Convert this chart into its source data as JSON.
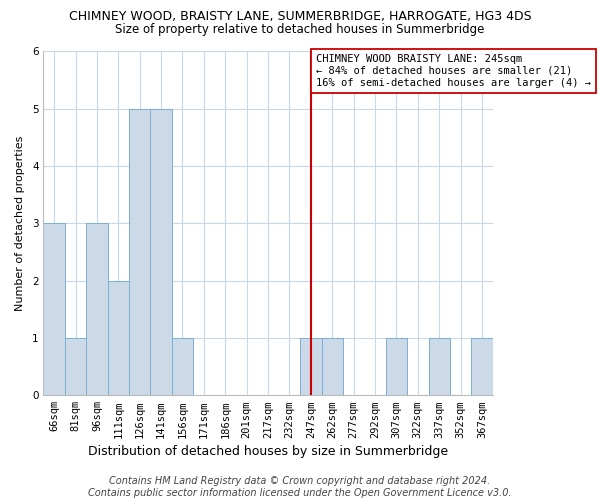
{
  "title": "CHIMNEY WOOD, BRAISTY LANE, SUMMERBRIDGE, HARROGATE, HG3 4DS",
  "subtitle": "Size of property relative to detached houses in Summerbridge",
  "xlabel": "Distribution of detached houses by size in Summerbridge",
  "ylabel": "Number of detached properties",
  "bar_labels": [
    "66sqm",
    "81sqm",
    "96sqm",
    "111sqm",
    "126sqm",
    "141sqm",
    "156sqm",
    "171sqm",
    "186sqm",
    "201sqm",
    "217sqm",
    "232sqm",
    "247sqm",
    "262sqm",
    "277sqm",
    "292sqm",
    "307sqm",
    "322sqm",
    "337sqm",
    "352sqm",
    "367sqm"
  ],
  "bar_values": [
    3,
    1,
    3,
    2,
    5,
    5,
    1,
    0,
    0,
    0,
    0,
    0,
    1,
    1,
    0,
    0,
    1,
    0,
    1,
    0,
    1
  ],
  "bar_color": "#ccd9e8",
  "bar_edge_color": "#7bafd4",
  "highlight_index": 12,
  "highlight_line_color": "#cc0000",
  "ylim": [
    0,
    6
  ],
  "yticks": [
    0,
    1,
    2,
    3,
    4,
    5,
    6
  ],
  "annotation_text": "CHIMNEY WOOD BRAISTY LANE: 245sqm\n← 84% of detached houses are smaller (21)\n16% of semi-detached houses are larger (4) →",
  "annotation_box_color": "#ffffff",
  "annotation_box_edge": "#cc0000",
  "footer_line1": "Contains HM Land Registry data © Crown copyright and database right 2024.",
  "footer_line2": "Contains public sector information licensed under the Open Government Licence v3.0.",
  "bg_color": "#ffffff",
  "grid_color": "#c8d8e8",
  "title_fontsize": 9,
  "subtitle_fontsize": 8.5,
  "xlabel_fontsize": 9,
  "ylabel_fontsize": 8,
  "tick_fontsize": 7.5,
  "annot_fontsize": 7.5,
  "footer_fontsize": 7
}
